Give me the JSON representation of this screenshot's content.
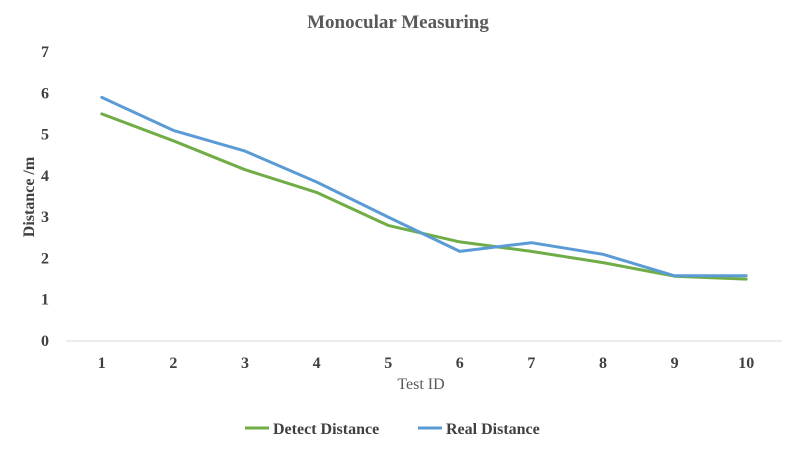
{
  "chart_data": {
    "type": "line",
    "title": "Monocular Measuring",
    "xlabel": "Test ID",
    "ylabel": "Distance /m",
    "categories": [
      "1",
      "2",
      "3",
      "4",
      "5",
      "6",
      "7",
      "8",
      "9",
      "10"
    ],
    "ylim": [
      0,
      7
    ],
    "yticks": [
      "0",
      "1",
      "2",
      "3",
      "4",
      "5",
      "6",
      "7"
    ],
    "grid": false,
    "legend_position": "bottom",
    "series": [
      {
        "name": "Detect Distance",
        "color": "#70AD47",
        "values": [
          5.5,
          4.85,
          4.15,
          3.6,
          2.8,
          2.4,
          2.17,
          1.9,
          1.57,
          1.5
        ]
      },
      {
        "name": "Real Distance",
        "color": "#5B9BD5",
        "values": [
          5.9,
          5.1,
          4.6,
          3.85,
          3.0,
          2.17,
          2.38,
          2.1,
          1.58,
          1.58
        ]
      }
    ]
  }
}
